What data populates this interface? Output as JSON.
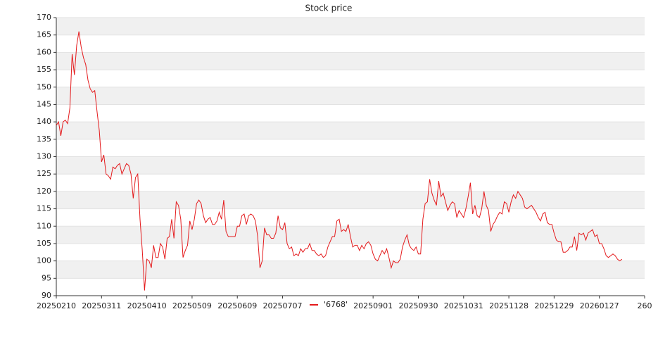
{
  "chart_data": {
    "type": "line",
    "title": "Stock price",
    "x": [
      0,
      1,
      2,
      3,
      4,
      5,
      6,
      7,
      8,
      9,
      10,
      11,
      12,
      13,
      14,
      15,
      16,
      17,
      18,
      19,
      20,
      21,
      22,
      23,
      24,
      25,
      26,
      27,
      28,
      29,
      30,
      31,
      32,
      33,
      34,
      35,
      36,
      37,
      38,
      39,
      40,
      41,
      42,
      43,
      44,
      45,
      46,
      47,
      48,
      49,
      50,
      51,
      52,
      53,
      54,
      55,
      56,
      57,
      58,
      59,
      60,
      61,
      62,
      63,
      64,
      65,
      66,
      67,
      68,
      69,
      70,
      71,
      72,
      73,
      74,
      75,
      76,
      77,
      78,
      79,
      80,
      81,
      82,
      83,
      84,
      85,
      86,
      87,
      88,
      89,
      90,
      91,
      92,
      93,
      94,
      95,
      96,
      97,
      98,
      99,
      100,
      101,
      102,
      103,
      104,
      105,
      106,
      107,
      108,
      109,
      110,
      111,
      112,
      113,
      114,
      115,
      116,
      117,
      118,
      119,
      120,
      121,
      122,
      123,
      124,
      125,
      126,
      127,
      128,
      129,
      130,
      131,
      132,
      133,
      134,
      135,
      136,
      137,
      138,
      139,
      140,
      141,
      142,
      143,
      144,
      145,
      146,
      147,
      148,
      149,
      150,
      151,
      152,
      153,
      154,
      155,
      156,
      157,
      158,
      159,
      160,
      161,
      162,
      163,
      164,
      165,
      166,
      167,
      168,
      169,
      170,
      171,
      172,
      173,
      174,
      175,
      176,
      177,
      178,
      179,
      180,
      181,
      182,
      183,
      184,
      185,
      186,
      187,
      188,
      189,
      190,
      191,
      192,
      193,
      194,
      195,
      196,
      197,
      198,
      199,
      200,
      201,
      202,
      203,
      204,
      205,
      206,
      207,
      208,
      209,
      210,
      211,
      212,
      213,
      214,
      215,
      216,
      217,
      218,
      219,
      220,
      221,
      222,
      223,
      224,
      225,
      226,
      227,
      228,
      229,
      230,
      231,
      232,
      233,
      234,
      235,
      236,
      237,
      238,
      239,
      240,
      241,
      242,
      243,
      244,
      245,
      246,
      247,
      248,
      249,
      250
    ],
    "series": [
      {
        "name": "'6768'",
        "color": "#e41a1c",
        "values": [
          139,
          140,
          136,
          140,
          140.5,
          139.5,
          144,
          159.5,
          153.5,
          162,
          166,
          161.5,
          158.5,
          156.5,
          152,
          149.5,
          148.5,
          149,
          143,
          137.5,
          128.5,
          130.5,
          125,
          124.5,
          123.5,
          127,
          126.5,
          127.5,
          128,
          125,
          126.5,
          128,
          127.5,
          125,
          118,
          124,
          125,
          112,
          103,
          91.5,
          100.5,
          100,
          98,
          104.5,
          101,
          101,
          105,
          104,
          100.5,
          106.5,
          107,
          112,
          106.5,
          117,
          116,
          112,
          101,
          103,
          104.5,
          111.5,
          109,
          112,
          116.5,
          117.5,
          116.5,
          113,
          111,
          112,
          112.5,
          110.5,
          110.5,
          111.5,
          114,
          112,
          117.5,
          108.5,
          107,
          107,
          107,
          107,
          110,
          110,
          113,
          113.5,
          110.5,
          113,
          113.5,
          113,
          111.5,
          107,
          98,
          100,
          109.5,
          107.5,
          107.5,
          106.5,
          106.5,
          108,
          113,
          109.5,
          109,
          111,
          105,
          103.5,
          104,
          101.5,
          102,
          101.5,
          103.5,
          102.5,
          103.5,
          103.5,
          105,
          103,
          103,
          102,
          101.5,
          102,
          101,
          101.5,
          104,
          105.5,
          107,
          107,
          111.5,
          112,
          108.5,
          109,
          108.5,
          110.5,
          107,
          104,
          104.5,
          104.5,
          103,
          104.5,
          103.5,
          105,
          105.5,
          104.5,
          102,
          100.5,
          100,
          101.5,
          103,
          102,
          103.5,
          101,
          98,
          100,
          99.5,
          99.5,
          100.5,
          104,
          106,
          107.5,
          104.5,
          103.5,
          103,
          104,
          102,
          102,
          112,
          116.5,
          117,
          123.5,
          119.5,
          117.5,
          116,
          123,
          118.5,
          119.5,
          117,
          114.5,
          116,
          117,
          116.5,
          112.5,
          114.5,
          113.5,
          112.5,
          115,
          118.5,
          122.5,
          113.5,
          116,
          113,
          112.5,
          115,
          120,
          116,
          114.5,
          108.5,
          110.5,
          111.5,
          113,
          114,
          113.5,
          117,
          116.5,
          114,
          117,
          119,
          118,
          120,
          119,
          118,
          115.5,
          115,
          115.5,
          116,
          115,
          114,
          112.5,
          111.5,
          113.5,
          114,
          111,
          110.5,
          110.5,
          108,
          106,
          105.5,
          105.5,
          102.5,
          102.5,
          103,
          104,
          104,
          107,
          103,
          108,
          107.5,
          108,
          106,
          108,
          108.5,
          109,
          107,
          107.5,
          105,
          105,
          103.5,
          101.5,
          101,
          101.5,
          102,
          101.5,
          100.5,
          100,
          100.5
        ]
      }
    ],
    "xlim": [
      0,
      260
    ],
    "xticks": [
      {
        "value": 0,
        "label": "20250210"
      },
      {
        "value": 20,
        "label": "20250311"
      },
      {
        "value": 40,
        "label": "20250410"
      },
      {
        "value": 60,
        "label": "20250509"
      },
      {
        "value": 80,
        "label": "20250609"
      },
      {
        "value": 100,
        "label": "20250707"
      },
      {
        "value": 140,
        "label": "20250901"
      },
      {
        "value": 160,
        "label": "20250930"
      },
      {
        "value": 180,
        "label": "20251031"
      },
      {
        "value": 200,
        "label": "20251128"
      },
      {
        "value": 220,
        "label": "20251229"
      },
      {
        "value": 240,
        "label": "20260127"
      },
      {
        "value": 260,
        "label": "260"
      }
    ],
    "ylim": [
      90,
      170
    ],
    "yticks": [
      90,
      95,
      100,
      105,
      110,
      115,
      120,
      125,
      130,
      135,
      140,
      145,
      150,
      155,
      160,
      165,
      170
    ],
    "grid": true,
    "legend": "bottom"
  }
}
